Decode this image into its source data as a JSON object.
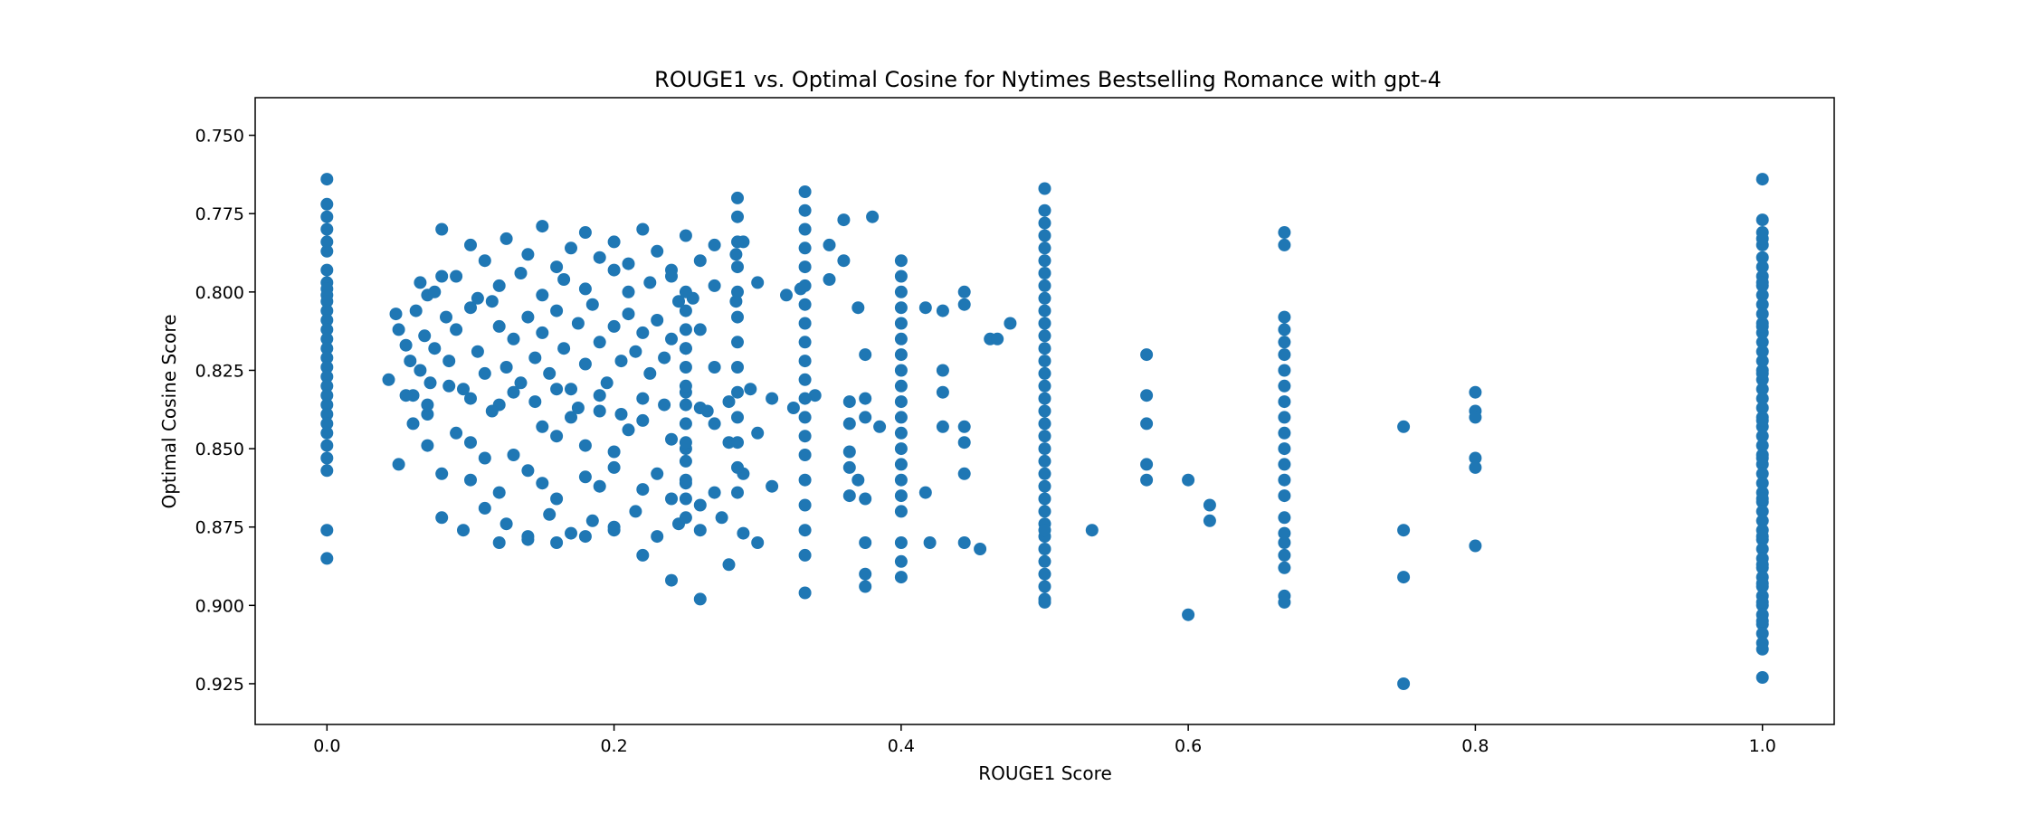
{
  "chart_data": {
    "type": "scatter",
    "title": "ROUGE1 vs. Optimal Cosine for Nytimes Bestselling Romance with gpt-4",
    "xlabel": "ROUGE1 Score",
    "ylabel": "Optimal Cosine Score",
    "xlim": [
      -0.05,
      1.05
    ],
    "ylim": [
      0.738,
      0.938
    ],
    "y_inverted": true,
    "xticks": [
      0.0,
      0.2,
      0.4,
      0.6,
      0.8,
      1.0
    ],
    "xtick_labels": [
      "0.0",
      "0.2",
      "0.4",
      "0.6",
      "0.8",
      "1.0"
    ],
    "yticks": [
      0.75,
      0.775,
      0.8,
      0.825,
      0.85,
      0.875,
      0.9,
      0.925
    ],
    "ytick_labels": [
      "0.750",
      "0.775",
      "0.800",
      "0.825",
      "0.850",
      "0.875",
      "0.900",
      "0.925"
    ],
    "grid": false,
    "legend": "none",
    "marker_color": "#1f77b4",
    "series": [
      {
        "x": [
          0.0,
          0.0,
          0.0,
          0.0,
          0.0,
          0.0,
          0.0,
          0.0,
          0.0,
          0.0,
          0.0,
          0.0,
          0.0,
          0.0,
          0.0,
          0.0,
          0.0,
          0.0,
          0.0,
          0.0,
          0.0,
          0.0,
          0.0,
          0.0,
          0.0,
          0.0,
          0.0,
          0.0,
          0.0,
          0.0,
          0.043,
          0.048,
          0.05,
          0.055,
          0.058,
          0.06,
          0.062,
          0.065,
          0.068,
          0.07,
          0.072,
          0.075,
          0.08,
          0.083,
          0.085,
          0.09,
          0.095,
          0.1,
          0.105,
          0.11,
          0.115,
          0.12,
          0.125,
          0.13,
          0.135,
          0.14,
          0.145,
          0.15,
          0.155,
          0.16,
          0.165,
          0.17,
          0.175,
          0.18,
          0.185,
          0.19,
          0.195,
          0.2,
          0.205,
          0.21,
          0.215,
          0.22,
          0.225,
          0.23,
          0.235,
          0.24,
          0.245,
          0.25,
          0.26,
          0.27,
          0.08,
          0.1,
          0.11,
          0.125,
          0.14,
          0.15,
          0.16,
          0.17,
          0.18,
          0.19,
          0.2,
          0.21,
          0.22,
          0.23,
          0.24,
          0.25,
          0.26,
          0.27,
          0.285,
          0.29,
          0.06,
          0.07,
          0.09,
          0.1,
          0.12,
          0.13,
          0.15,
          0.16,
          0.17,
          0.18,
          0.19,
          0.2,
          0.21,
          0.22,
          0.24,
          0.25,
          0.26,
          0.27,
          0.28,
          0.3,
          0.05,
          0.07,
          0.08,
          0.1,
          0.11,
          0.12,
          0.14,
          0.15,
          0.16,
          0.18,
          0.19,
          0.2,
          0.22,
          0.23,
          0.24,
          0.25,
          0.26,
          0.27,
          0.29,
          0.31,
          0.065,
          0.075,
          0.09,
          0.105,
          0.12,
          0.135,
          0.15,
          0.165,
          0.18,
          0.2,
          0.21,
          0.225,
          0.24,
          0.255,
          0.27,
          0.285,
          0.3,
          0.32,
          0.33,
          0.35,
          0.055,
          0.07,
          0.085,
          0.1,
          0.115,
          0.13,
          0.145,
          0.16,
          0.175,
          0.19,
          0.205,
          0.22,
          0.235,
          0.25,
          0.265,
          0.28,
          0.295,
          0.31,
          0.325,
          0.34,
          0.08,
          0.095,
          0.11,
          0.125,
          0.14,
          0.155,
          0.17,
          0.185,
          0.2,
          0.215,
          0.23,
          0.245,
          0.26,
          0.275,
          0.29,
          0.12,
          0.14,
          0.16,
          0.18,
          0.2,
          0.22,
          0.24,
          0.26,
          0.28,
          0.3,
          0.25,
          0.25,
          0.25,
          0.25,
          0.25,
          0.25,
          0.25,
          0.25,
          0.25,
          0.25,
          0.25,
          0.25,
          0.25,
          0.286,
          0.286,
          0.286,
          0.286,
          0.286,
          0.286,
          0.286,
          0.286,
          0.286,
          0.286,
          0.286,
          0.286,
          0.286,
          0.333,
          0.333,
          0.333,
          0.333,
          0.333,
          0.333,
          0.333,
          0.333,
          0.333,
          0.333,
          0.333,
          0.333,
          0.333,
          0.333,
          0.333,
          0.333,
          0.333,
          0.333,
          0.333,
          0.333,
          0.35,
          0.36,
          0.36,
          0.37,
          0.37,
          0.375,
          0.375,
          0.38,
          0.385,
          0.364,
          0.364,
          0.364,
          0.364,
          0.364,
          0.375,
          0.375,
          0.375,
          0.375,
          0.375,
          0.4,
          0.4,
          0.4,
          0.4,
          0.4,
          0.4,
          0.4,
          0.4,
          0.4,
          0.4,
          0.4,
          0.4,
          0.4,
          0.4,
          0.4,
          0.4,
          0.4,
          0.4,
          0.4,
          0.4,
          0.417,
          0.417,
          0.42,
          0.429,
          0.429,
          0.429,
          0.429,
          0.444,
          0.444,
          0.444,
          0.444,
          0.444,
          0.444,
          0.455,
          0.462,
          0.467,
          0.476,
          0.5,
          0.5,
          0.5,
          0.5,
          0.5,
          0.5,
          0.5,
          0.5,
          0.5,
          0.5,
          0.5,
          0.5,
          0.5,
          0.5,
          0.5,
          0.5,
          0.5,
          0.5,
          0.5,
          0.5,
          0.5,
          0.5,
          0.5,
          0.5,
          0.5,
          0.5,
          0.5,
          0.5,
          0.5,
          0.5,
          0.5,
          0.5,
          0.5,
          0.5,
          0.5,
          0.533,
          0.571,
          0.571,
          0.571,
          0.571,
          0.571,
          0.6,
          0.6,
          0.615,
          0.615,
          0.667,
          0.667,
          0.667,
          0.667,
          0.667,
          0.667,
          0.667,
          0.667,
          0.667,
          0.667,
          0.667,
          0.667,
          0.667,
          0.667,
          0.667,
          0.667,
          0.667,
          0.667,
          0.667,
          0.667,
          0.667,
          0.667,
          0.75,
          0.75,
          0.75,
          0.75,
          0.8,
          0.8,
          0.8,
          0.8,
          0.8,
          0.8,
          1.0,
          1.0,
          1.0,
          1.0,
          1.0,
          1.0,
          1.0,
          1.0,
          1.0,
          1.0,
          1.0,
          1.0,
          1.0,
          1.0,
          1.0,
          1.0,
          1.0,
          1.0,
          1.0,
          1.0,
          1.0,
          1.0,
          1.0,
          1.0,
          1.0,
          1.0,
          1.0,
          1.0,
          1.0,
          1.0,
          1.0,
          1.0,
          1.0,
          1.0,
          1.0,
          1.0,
          1.0,
          1.0,
          1.0,
          1.0,
          1.0,
          1.0,
          1.0,
          1.0,
          1.0,
          1.0,
          1.0,
          1.0,
          1.0,
          1.0,
          1.0,
          1.0,
          1.0,
          1.0,
          1.0,
          1.0,
          1.0,
          1.0,
          1.0,
          1.0
        ],
        "y": [
          0.764,
          0.772,
          0.776,
          0.78,
          0.784,
          0.787,
          0.793,
          0.797,
          0.799,
          0.801,
          0.803,
          0.806,
          0.809,
          0.812,
          0.815,
          0.818,
          0.821,
          0.824,
          0.827,
          0.83,
          0.833,
          0.836,
          0.839,
          0.842,
          0.845,
          0.849,
          0.853,
          0.857,
          0.876,
          0.885,
          0.828,
          0.807,
          0.812,
          0.817,
          0.822,
          0.833,
          0.806,
          0.825,
          0.814,
          0.801,
          0.829,
          0.818,
          0.795,
          0.808,
          0.822,
          0.812,
          0.831,
          0.805,
          0.819,
          0.826,
          0.803,
          0.811,
          0.824,
          0.815,
          0.829,
          0.808,
          0.821,
          0.813,
          0.826,
          0.806,
          0.818,
          0.831,
          0.81,
          0.823,
          0.804,
          0.816,
          0.829,
          0.811,
          0.822,
          0.807,
          0.819,
          0.813,
          0.826,
          0.809,
          0.821,
          0.815,
          0.803,
          0.818,
          0.812,
          0.824,
          0.78,
          0.785,
          0.79,
          0.783,
          0.788,
          0.779,
          0.792,
          0.786,
          0.781,
          0.789,
          0.784,
          0.791,
          0.78,
          0.787,
          0.793,
          0.782,
          0.79,
          0.785,
          0.788,
          0.784,
          0.842,
          0.839,
          0.845,
          0.848,
          0.836,
          0.852,
          0.843,
          0.846,
          0.84,
          0.849,
          0.838,
          0.851,
          0.844,
          0.841,
          0.847,
          0.85,
          0.837,
          0.842,
          0.848,
          0.845,
          0.855,
          0.849,
          0.858,
          0.86,
          0.853,
          0.864,
          0.857,
          0.861,
          0.866,
          0.859,
          0.862,
          0.856,
          0.863,
          0.858,
          0.866,
          0.861,
          0.868,
          0.864,
          0.858,
          0.862,
          0.797,
          0.8,
          0.795,
          0.802,
          0.798,
          0.794,
          0.801,
          0.796,
          0.799,
          0.793,
          0.8,
          0.797,
          0.795,
          0.802,
          0.798,
          0.803,
          0.797,
          0.801,
          0.799,
          0.796,
          0.833,
          0.836,
          0.83,
          0.834,
          0.838,
          0.832,
          0.835,
          0.831,
          0.837,
          0.833,
          0.839,
          0.834,
          0.836,
          0.832,
          0.838,
          0.835,
          0.831,
          0.834,
          0.837,
          0.833,
          0.872,
          0.876,
          0.869,
          0.874,
          0.878,
          0.871,
          0.877,
          0.873,
          0.875,
          0.87,
          0.878,
          0.874,
          0.876,
          0.872,
          0.877,
          0.88,
          0.879,
          0.88,
          0.878,
          0.876,
          0.884,
          0.892,
          0.898,
          0.887,
          0.88,
          0.8,
          0.806,
          0.812,
          0.818,
          0.824,
          0.83,
          0.836,
          0.842,
          0.848,
          0.854,
          0.86,
          0.866,
          0.872,
          0.77,
          0.776,
          0.784,
          0.792,
          0.8,
          0.808,
          0.816,
          0.824,
          0.832,
          0.84,
          0.848,
          0.856,
          0.864,
          0.768,
          0.774,
          0.78,
          0.786,
          0.792,
          0.798,
          0.804,
          0.81,
          0.816,
          0.822,
          0.828,
          0.834,
          0.84,
          0.846,
          0.852,
          0.86,
          0.868,
          0.876,
          0.884,
          0.896,
          0.785,
          0.777,
          0.79,
          0.805,
          0.86,
          0.866,
          0.88,
          0.776,
          0.843,
          0.835,
          0.842,
          0.851,
          0.856,
          0.865,
          0.82,
          0.834,
          0.84,
          0.89,
          0.894,
          0.79,
          0.795,
          0.8,
          0.805,
          0.81,
          0.815,
          0.82,
          0.825,
          0.83,
          0.835,
          0.84,
          0.845,
          0.85,
          0.855,
          0.86,
          0.865,
          0.87,
          0.88,
          0.886,
          0.891,
          0.805,
          0.864,
          0.88,
          0.806,
          0.825,
          0.832,
          0.843,
          0.8,
          0.804,
          0.843,
          0.848,
          0.858,
          0.88,
          0.882,
          0.815,
          0.815,
          0.81,
          0.767,
          0.774,
          0.778,
          0.782,
          0.786,
          0.79,
          0.794,
          0.798,
          0.802,
          0.806,
          0.81,
          0.814,
          0.818,
          0.822,
          0.826,
          0.83,
          0.834,
          0.838,
          0.842,
          0.846,
          0.85,
          0.854,
          0.858,
          0.862,
          0.866,
          0.87,
          0.874,
          0.878,
          0.882,
          0.886,
          0.89,
          0.894,
          0.898,
          0.876,
          0.899,
          0.876,
          0.82,
          0.833,
          0.842,
          0.855,
          0.86,
          0.86,
          0.903,
          0.868,
          0.873,
          0.781,
          0.785,
          0.808,
          0.812,
          0.816,
          0.82,
          0.825,
          0.83,
          0.835,
          0.84,
          0.845,
          0.85,
          0.855,
          0.86,
          0.865,
          0.872,
          0.88,
          0.884,
          0.888,
          0.897,
          0.899,
          0.877,
          0.843,
          0.876,
          0.891,
          0.925,
          0.832,
          0.838,
          0.84,
          0.853,
          0.856,
          0.881,
          0.764,
          0.777,
          0.781,
          0.785,
          0.789,
          0.792,
          0.795,
          0.798,
          0.801,
          0.804,
          0.807,
          0.81,
          0.813,
          0.816,
          0.819,
          0.822,
          0.825,
          0.828,
          0.831,
          0.834,
          0.837,
          0.84,
          0.843,
          0.846,
          0.849,
          0.852,
          0.855,
          0.858,
          0.861,
          0.864,
          0.867,
          0.87,
          0.873,
          0.876,
          0.879,
          0.882,
          0.885,
          0.888,
          0.891,
          0.894,
          0.897,
          0.9,
          0.903,
          0.906,
          0.909,
          0.912,
          0.914,
          0.923,
          0.783,
          0.797,
          0.811,
          0.826,
          0.841,
          0.853,
          0.866,
          0.878,
          0.887,
          0.893,
          0.899,
          0.905
        ]
      }
    ]
  }
}
